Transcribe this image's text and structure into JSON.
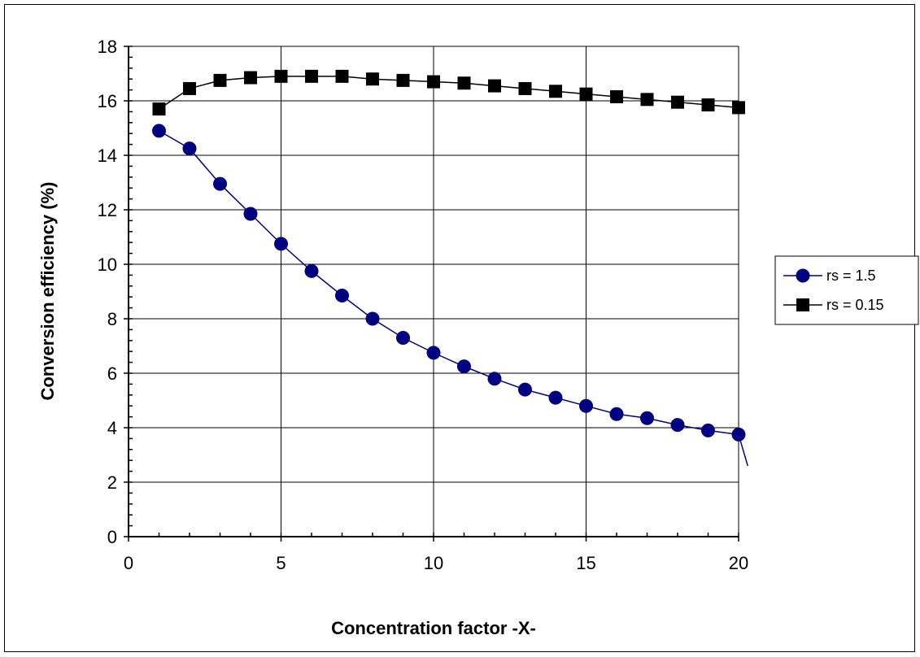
{
  "chart_data": {
    "type": "line",
    "title": "",
    "xlabel": "Concentration factor -X-",
    "ylabel": "Conversion efficiency (%)",
    "xlim": [
      0,
      20
    ],
    "ylim": [
      0,
      18
    ],
    "x_ticks": [
      0,
      5,
      10,
      15,
      20
    ],
    "y_ticks": [
      0,
      2,
      4,
      6,
      8,
      10,
      12,
      14,
      16,
      18
    ],
    "x_tick_labels": [
      "0",
      "5",
      "10",
      "15",
      "20"
    ],
    "y_tick_labels": [
      "0",
      "2",
      "4",
      "6",
      "8",
      "10",
      "12",
      "14",
      "16",
      "18"
    ],
    "grid": true,
    "legend_position": "right",
    "series": [
      {
        "name": "rs = 1.5",
        "marker": "circle",
        "color": "#000080",
        "x": [
          1,
          2,
          3,
          4,
          5,
          6,
          7,
          8,
          9,
          10,
          11,
          12,
          13,
          14,
          15,
          16,
          17,
          18,
          19,
          20
        ],
        "values": [
          14.9,
          14.25,
          12.95,
          11.85,
          10.75,
          9.75,
          8.85,
          8.0,
          7.3,
          6.75,
          6.25,
          5.8,
          5.4,
          5.1,
          4.8,
          4.5,
          4.35,
          4.1,
          3.9,
          3.75
        ],
        "tail": [
          20.3,
          2.6
        ]
      },
      {
        "name": "rs = 0.15",
        "marker": "square",
        "color": "#000000",
        "x": [
          1,
          2,
          3,
          4,
          5,
          6,
          7,
          8,
          9,
          10,
          11,
          12,
          13,
          14,
          15,
          16,
          17,
          18,
          19,
          20
        ],
        "values": [
          15.7,
          16.45,
          16.75,
          16.85,
          16.9,
          16.9,
          16.9,
          16.8,
          16.75,
          16.7,
          16.65,
          16.55,
          16.45,
          16.35,
          16.25,
          16.15,
          16.05,
          15.95,
          15.85,
          15.75
        ]
      }
    ]
  }
}
